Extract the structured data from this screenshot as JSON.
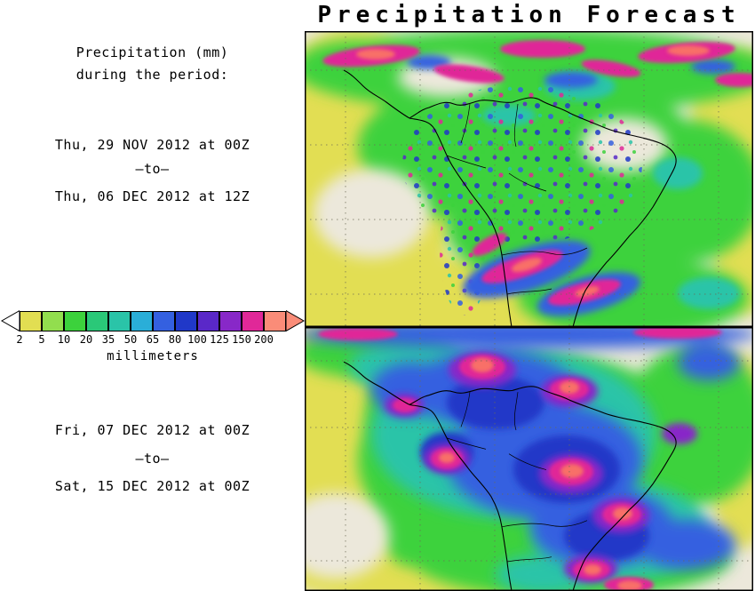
{
  "title": "Precipitation Forecast",
  "sidebar": {
    "heading_line1": "Precipitation (mm)",
    "heading_line2": "during the period:",
    "period1": {
      "start": "Thu, 29 NOV 2012 at 00Z",
      "separator": "–to–",
      "end": "Thu, 06 DEC 2012 at 12Z"
    },
    "period2": {
      "start": "Fri, 07 DEC 2012 at 00Z",
      "separator": "–to–",
      "end": "Sat, 15 DEC 2012 at 00Z"
    }
  },
  "legend": {
    "unit_label": "millimeters",
    "tick_labels": [
      "2",
      "5",
      "10",
      "20",
      "35",
      "50",
      "65",
      "80",
      "100",
      "125",
      "150",
      "200"
    ],
    "colors": [
      "#E2DE52",
      "#92DE4E",
      "#3CD23C",
      "#2AC878",
      "#2AC4A8",
      "#2AAED8",
      "#3460E0",
      "#2038C8",
      "#5A28C8",
      "#8828C8",
      "#E02898",
      "#FA8C78"
    ],
    "underflow_color": "#FFFFFF",
    "overflow_color": "#FA8C78"
  }
}
